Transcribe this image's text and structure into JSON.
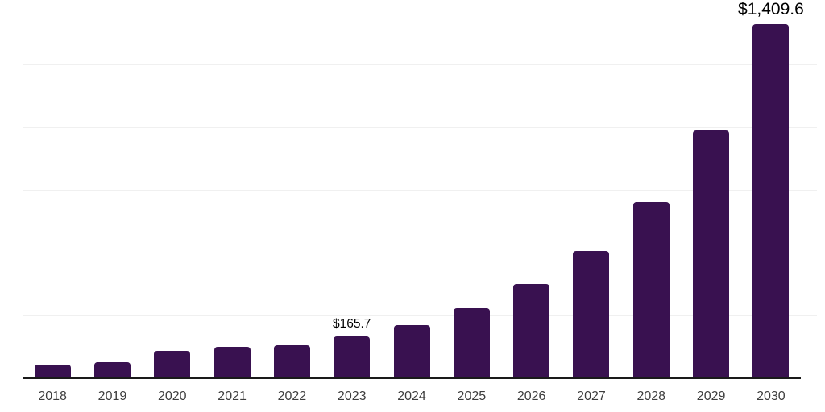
{
  "chart_data": {
    "type": "bar",
    "title": "",
    "xlabel": "",
    "ylabel": "",
    "categories": [
      "2018",
      "2019",
      "2020",
      "2021",
      "2022",
      "2023",
      "2024",
      "2025",
      "2026",
      "2027",
      "2028",
      "2029",
      "2030"
    ],
    "values": [
      56,
      63,
      110,
      124,
      131,
      165.7,
      212,
      280,
      375,
      505,
      703,
      988,
      1409.6
    ],
    "data_labels": [
      {
        "index": 5,
        "text": "$165.7",
        "emphasis": false
      },
      {
        "index": 12,
        "text": "$1,409.6",
        "emphasis": true
      }
    ],
    "ylim": [
      0,
      1500
    ],
    "gridline_values": [
      250,
      500,
      750,
      1000,
      1250,
      1500
    ],
    "grid": true,
    "legend": false,
    "colors": {
      "bar": "#391150",
      "axis_line": "#1a1a1a",
      "gridline": "#f0f0f0",
      "tick_label": "#3d3d3d",
      "data_label": "#000000",
      "background": "#ffffff"
    }
  }
}
